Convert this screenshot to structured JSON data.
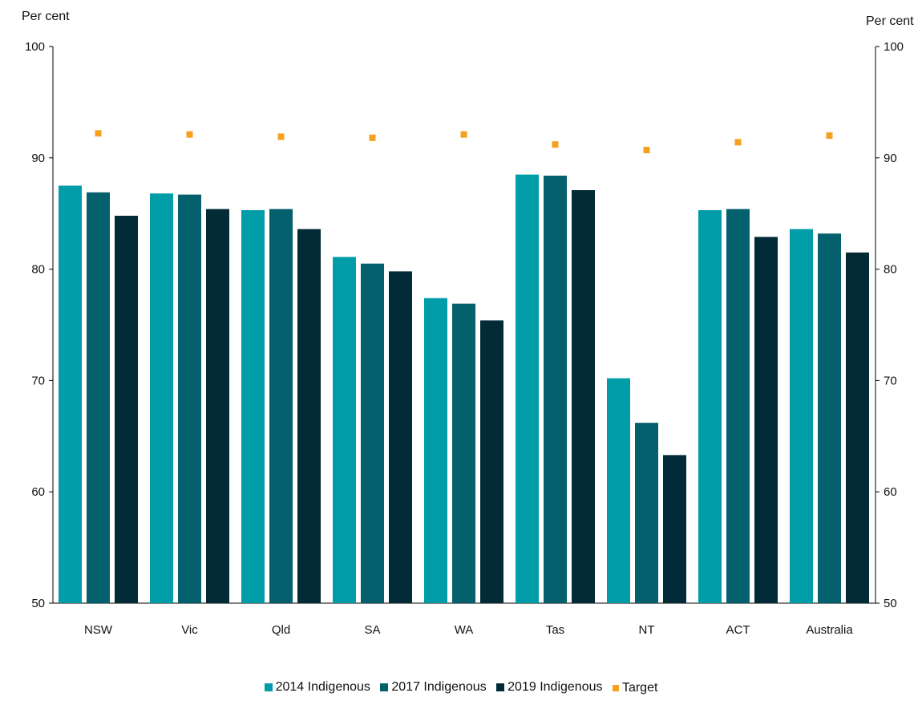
{
  "chart_data": {
    "type": "bar",
    "ylabel_left": "Per cent",
    "ylabel_right": "Per cent",
    "ylim": [
      50,
      100
    ],
    "yticks": [
      50,
      60,
      70,
      80,
      90,
      100
    ],
    "categories": [
      "NSW",
      "Vic",
      "Qld",
      "SA",
      "WA",
      "Tas",
      "NT",
      "ACT",
      "Australia"
    ],
    "series": [
      {
        "name": "2014 Indigenous",
        "color": "#009ca8",
        "values": [
          87.5,
          86.8,
          85.3,
          81.1,
          77.4,
          88.5,
          70.2,
          85.3,
          83.6
        ]
      },
      {
        "name": "2017 Indigenous",
        "color": "#03606c",
        "values": [
          86.9,
          86.7,
          85.4,
          80.5,
          76.9,
          88.4,
          66.2,
          85.4,
          83.2
        ]
      },
      {
        "name": "2019 Indigenous",
        "color": "#022a37",
        "values": [
          84.8,
          85.4,
          83.6,
          79.8,
          75.4,
          87.1,
          63.3,
          82.9,
          81.5
        ]
      }
    ],
    "target": {
      "name": "Target",
      "color": "#f4a11d",
      "values": [
        92.2,
        92.1,
        91.9,
        91.8,
        92.1,
        91.2,
        90.7,
        91.4,
        92.0
      ]
    }
  }
}
